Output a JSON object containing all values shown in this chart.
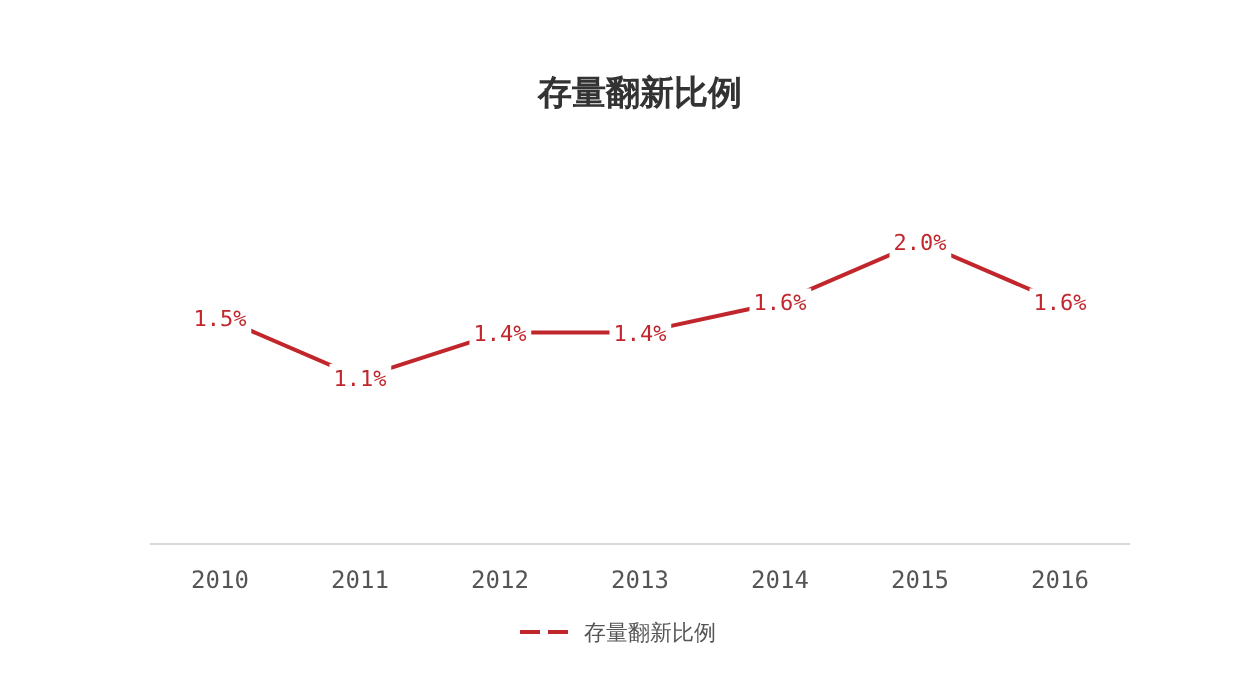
{
  "chart_data": {
    "type": "line",
    "title": "存量翻新比例",
    "categories": [
      "2010",
      "2011",
      "2012",
      "2013",
      "2014",
      "2015",
      "2016"
    ],
    "series": [
      {
        "name": "存量翻新比例",
        "color": "#c0262c",
        "values": [
          1.5,
          1.1,
          1.4,
          1.4,
          1.6,
          2.0,
          1.6
        ],
        "value_labels": [
          "1.5%",
          "1.1%",
          "1.4%",
          "1.4%",
          "1.6%",
          "2.0%",
          "1.6%"
        ]
      }
    ],
    "legend": "bottom",
    "marker": "none",
    "line_style": "solid"
  }
}
